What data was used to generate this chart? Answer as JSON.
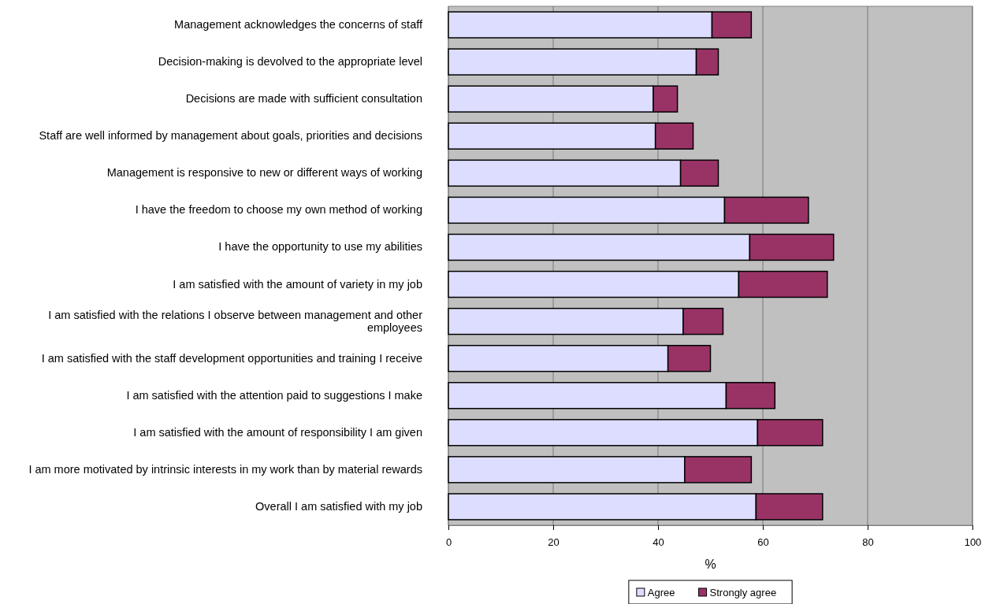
{
  "chart_data": {
    "type": "bar",
    "orientation": "horizontal",
    "stacked": true,
    "xlabel": "%",
    "categories": [
      "Management acknowledges the concerns of staff",
      "Decision-making is devolved to the appropriate level",
      "Decisions are made with sufficient consultation",
      "Staff are well informed by management about goals, priorities and decisions",
      "Management is responsive to new or different ways of working",
      "I have the freedom to choose my own method of working",
      "I have the opportunity to use my abilities",
      "I am satisfied with the amount of variety in my job",
      "I am satisfied with the relations I observe between management and other employees",
      "I am satisfied with the staff development opportunities and training I receive",
      "I am satisfied with the attention paid to suggestions I make",
      "I am satisfied with the amount of responsibility I am given",
      "I am more motivated by intrinsic interests in my work than by material rewards",
      "Overall I am satisfied with my job"
    ],
    "series": [
      {
        "name": "Agree",
        "color": "#ddddff",
        "values": [
          50.3,
          47.3,
          39.1,
          39.5,
          44.3,
          52.7,
          57.5,
          55.4,
          44.8,
          41.9,
          53.0,
          59.0,
          45.1,
          58.7
        ]
      },
      {
        "name": "Strongly agree",
        "color": "#993366",
        "values": [
          7.5,
          4.2,
          4.6,
          7.2,
          7.2,
          16.0,
          16.0,
          16.9,
          7.6,
          8.1,
          9.3,
          12.4,
          12.7,
          12.7
        ]
      }
    ],
    "xlim": [
      0,
      100
    ],
    "xticks": [
      0,
      20,
      40,
      60,
      80,
      100
    ],
    "grid": "x",
    "legend": "bottom"
  }
}
